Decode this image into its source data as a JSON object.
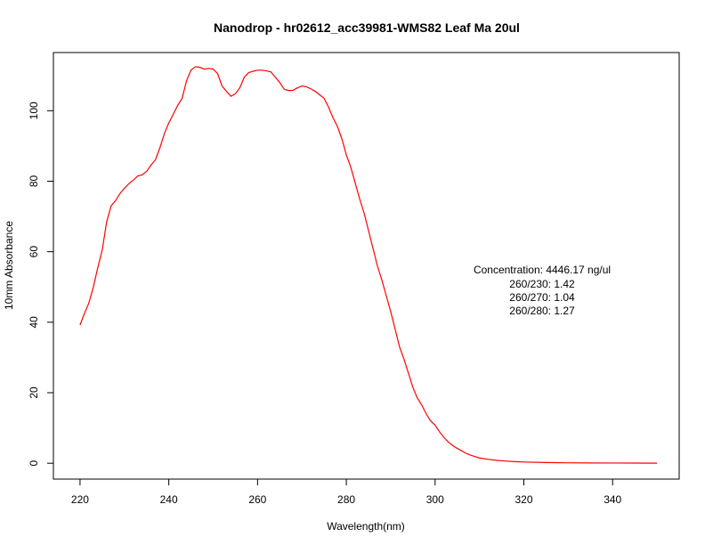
{
  "chart_data": {
    "type": "line",
    "title": "Nanodrop - hr02612_acc39981-WMS82 Leaf Ma 20ul",
    "xlabel": "Wavelength(nm)",
    "ylabel": "10mm Absorbance",
    "xlim": [
      214,
      355
    ],
    "ylim": [
      -4.5,
      116.5
    ],
    "xticks": [
      220,
      240,
      260,
      280,
      300,
      320,
      340
    ],
    "yticks": [
      0,
      20,
      40,
      60,
      80,
      100
    ],
    "grid": false,
    "line_color": "#ff0000",
    "annotations": [
      "Concentration: 4446.17 ng/ul",
      "260/230: 1.42",
      "260/270: 1.04",
      "260/280: 1.27"
    ],
    "series": [
      {
        "x": [
          220,
          221,
          222,
          223,
          224,
          225,
          226,
          227,
          228,
          229,
          230,
          231,
          232,
          233,
          234,
          235,
          236,
          237,
          238,
          239,
          240,
          241,
          242,
          243,
          244,
          245,
          246,
          247,
          248,
          249,
          250,
          251,
          252,
          253,
          254,
          255,
          256,
          257,
          258,
          259,
          260,
          261,
          262,
          263,
          264,
          265,
          266,
          267,
          268,
          269,
          270,
          271,
          272,
          273,
          274,
          275,
          276,
          277,
          278,
          279,
          280,
          281,
          282,
          283,
          284,
          285,
          286,
          287,
          288,
          289,
          290,
          291,
          292,
          293,
          294,
          295,
          296,
          297,
          298,
          299,
          300,
          301,
          302,
          303,
          304,
          305,
          306,
          307,
          308,
          309,
          310,
          312,
          314,
          316,
          318,
          320,
          325,
          330,
          335,
          340,
          345,
          350
        ],
        "y": [
          39.2,
          42.5,
          45.5,
          50,
          55.5,
          60.5,
          68.5,
          73,
          74.5,
          76.5,
          78,
          79.3,
          80.3,
          81.5,
          81.8,
          82.8,
          84.6,
          86.1,
          89.5,
          93.5,
          96.5,
          99,
          101.5,
          103.5,
          108.5,
          111.5,
          112.5,
          112.3,
          111.8,
          112,
          111.8,
          110.5,
          107,
          105.5,
          104.1,
          104.8,
          106.5,
          109.5,
          110.8,
          111.2,
          111.5,
          111.5,
          111.3,
          111,
          109.5,
          108,
          106.1,
          105.7,
          105.8,
          106.5,
          107,
          106.8,
          106.2,
          105.5,
          104.5,
          103.5,
          101,
          98,
          95.5,
          92,
          87.5,
          84,
          79.5,
          75,
          71,
          66,
          61,
          56,
          52,
          47.5,
          43,
          38,
          33,
          29.5,
          25.5,
          21.5,
          18.5,
          16.5,
          14,
          12,
          10.8,
          8.9,
          7.3,
          6,
          5,
          4.2,
          3.5,
          2.8,
          2.3,
          1.9,
          1.5,
          1.1,
          0.8,
          0.6,
          0.45,
          0.35,
          0.2,
          0.12,
          0.08,
          0.06,
          0.04,
          0.02
        ]
      }
    ]
  }
}
